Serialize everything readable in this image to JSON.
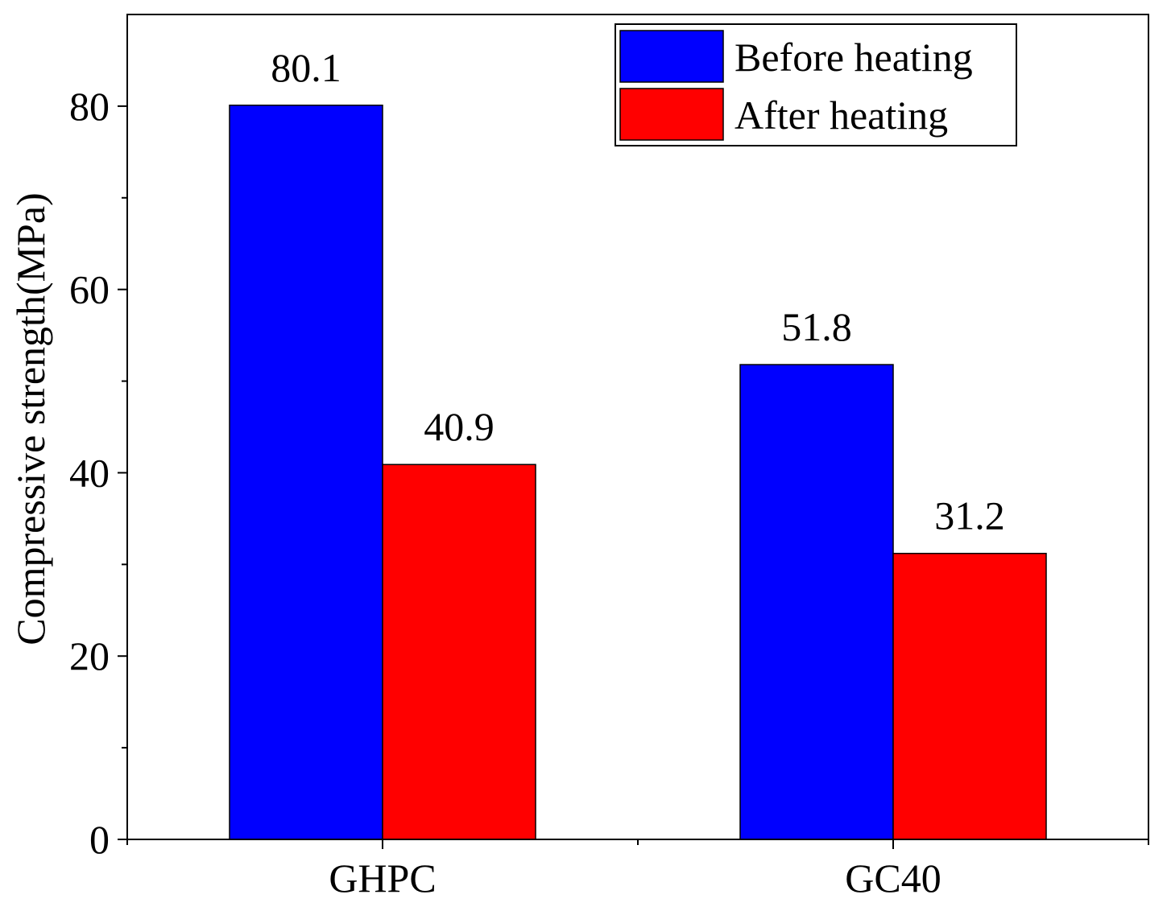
{
  "chart_data": {
    "type": "bar",
    "title": "",
    "xlabel": "",
    "ylabel": "Compressive strength(MPa)",
    "categories": [
      "GHPC",
      "GC40"
    ],
    "series": [
      {
        "name": "Before heating",
        "color": "#0000ff",
        "values": [
          80.1,
          51.8
        ]
      },
      {
        "name": "After heating",
        "color": "#ff0000",
        "values": [
          40.9,
          31.2
        ]
      }
    ],
    "data_labels": [
      [
        "80.1",
        "51.8"
      ],
      [
        "40.9",
        "31.2"
      ]
    ],
    "ylim": [
      0,
      90
    ],
    "yticks": [
      0,
      20,
      40,
      60,
      80
    ],
    "legend_position": "top-right",
    "grid": false
  }
}
